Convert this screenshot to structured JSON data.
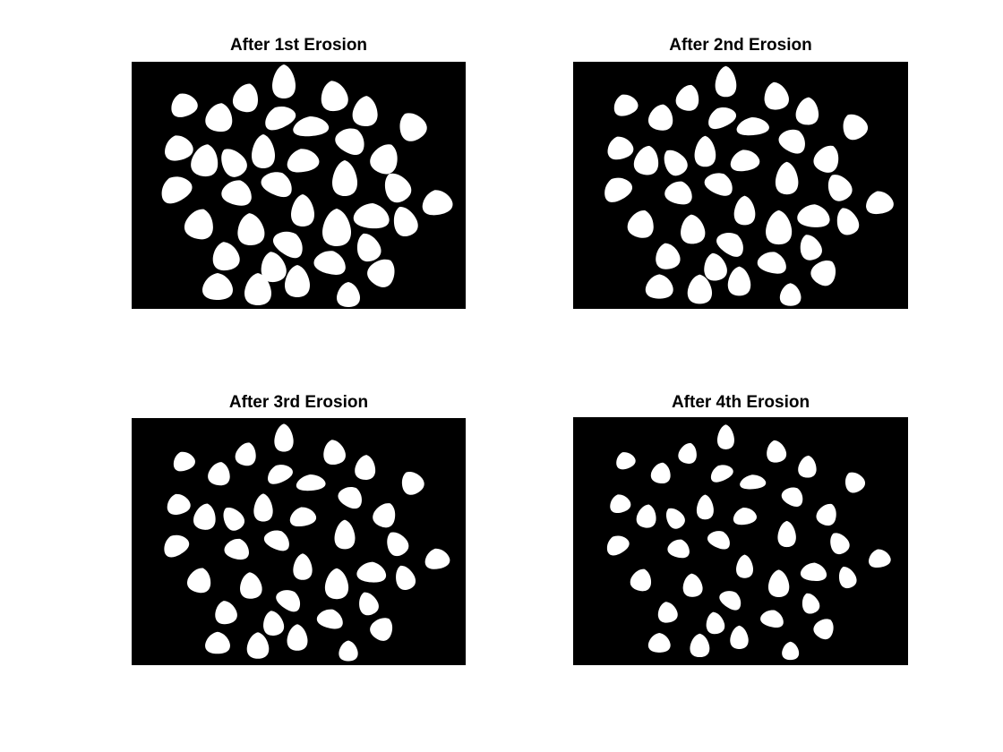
{
  "figure": {
    "background_color": "#ffffff",
    "image_background_color": "#000000",
    "object_color": "#ffffff",
    "panels": [
      {
        "title": "After 1st Erosion",
        "erosion_level": 1
      },
      {
        "title": "After 2nd Erosion",
        "erosion_level": 2
      },
      {
        "title": "After 3rd Erosion",
        "erosion_level": 3
      },
      {
        "title": "After 4th Erosion",
        "erosion_level": 4
      }
    ]
  }
}
